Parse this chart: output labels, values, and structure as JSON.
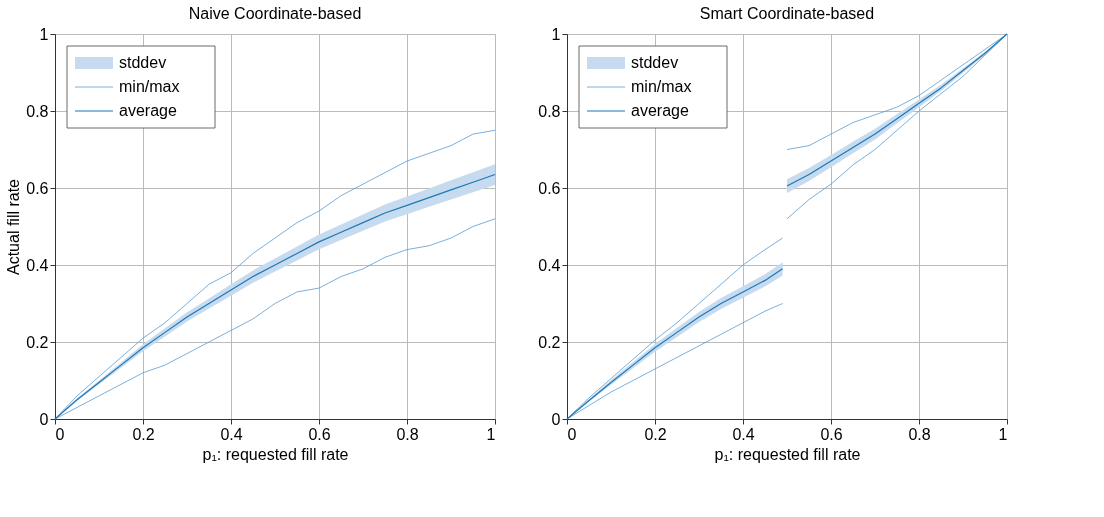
{
  "chart_data": [
    {
      "type": "line",
      "title": "Naive Coordinate-based",
      "xlabel": "p₁: requested fill rate",
      "ylabel": "Actual fill rate",
      "annotations": [
        "stddev"
      ],
      "x": [
        0,
        0.05,
        0.1,
        0.15,
        0.2,
        0.25,
        0.3,
        0.35,
        0.4,
        0.45,
        0.5,
        0.55,
        0.6,
        0.65,
        0.7,
        0.75,
        0.8,
        0.85,
        0.9,
        0.95,
        1
      ],
      "series": [
        {
          "name": "min/max",
          "color": "#5a9bd0",
          "values": [
            0,
            0.06,
            0.11,
            0.16,
            0.21,
            0.25,
            0.3,
            0.35,
            0.38,
            0.43,
            0.47,
            0.51,
            0.54,
            0.58,
            0.61,
            0.64,
            0.67,
            0.69,
            0.71,
            0.74,
            0.75
          ]
        },
        {
          "color": "#5a9bd0",
          "values": [
            0,
            0.03,
            0.06,
            0.09,
            0.12,
            0.14,
            0.17,
            0.2,
            0.23,
            0.26,
            0.3,
            0.33,
            0.34,
            0.37,
            0.39,
            0.42,
            0.44,
            0.45,
            0.47,
            0.5,
            0.52
          ]
        },
        {
          "name": "average",
          "color": "#1f77b4",
          "values": [
            0,
            0.05,
            0.095,
            0.14,
            0.185,
            0.225,
            0.265,
            0.3,
            0.335,
            0.37,
            0.4,
            0.43,
            0.46,
            0.485,
            0.51,
            0.535,
            0.555,
            0.575,
            0.595,
            0.615,
            0.635
          ],
          "lower": [
            0,
            0.047,
            0.09,
            0.133,
            0.176,
            0.214,
            0.253,
            0.287,
            0.32,
            0.354,
            0.383,
            0.412,
            0.441,
            0.465,
            0.489,
            0.513,
            0.532,
            0.551,
            0.57,
            0.589,
            0.608
          ],
          "upper": [
            0,
            0.053,
            0.1,
            0.147,
            0.194,
            0.236,
            0.277,
            0.313,
            0.35,
            0.386,
            0.417,
            0.448,
            0.479,
            0.505,
            0.531,
            0.557,
            0.578,
            0.599,
            0.62,
            0.641,
            0.662
          ]
        }
      ],
      "xlim": [
        0,
        1
      ],
      "ylim": [
        0,
        1
      ],
      "xticks": [
        0,
        0.2,
        0.4,
        0.6,
        0.8,
        1
      ],
      "yticks": [
        0,
        0.2,
        0.4,
        0.6,
        0.8,
        1
      ],
      "grid": true,
      "legend": "top left"
    },
    {
      "type": "line",
      "title": "Smart Coordinate-based",
      "xlabel": "p₁: requested fill rate",
      "annotations": [
        "stddev"
      ],
      "x": [
        0,
        0.05,
        0.1,
        0.15,
        0.2,
        0.25,
        0.3,
        0.35,
        0.4,
        0.45,
        0.49,
        0.495,
        0.5,
        0.55,
        0.6,
        0.65,
        0.7,
        0.75,
        0.8,
        0.85,
        0.9,
        0.95,
        1
      ],
      "series": [
        {
          "name": "min/max",
          "color": "#5a9bd0",
          "values": [
            0,
            0.055,
            0.105,
            0.155,
            0.205,
            0.25,
            0.3,
            0.35,
            0.4,
            0.44,
            0.47,
            null,
            0.7,
            0.71,
            0.74,
            0.77,
            0.79,
            0.81,
            0.84,
            0.88,
            0.92,
            0.96,
            1.0
          ]
        },
        {
          "color": "#5a9bd0",
          "values": [
            0,
            0.035,
            0.07,
            0.1,
            0.13,
            0.16,
            0.19,
            0.22,
            0.25,
            0.28,
            0.3,
            null,
            0.52,
            0.57,
            0.61,
            0.66,
            0.7,
            0.75,
            0.8,
            0.845,
            0.89,
            0.945,
            1.0
          ]
        },
        {
          "name": "average",
          "color": "#1f77b4",
          "values": [
            0,
            0.048,
            0.095,
            0.14,
            0.185,
            0.225,
            0.265,
            0.3,
            0.33,
            0.36,
            0.39,
            null,
            0.605,
            0.635,
            0.67,
            0.705,
            0.74,
            0.78,
            0.82,
            0.86,
            0.905,
            0.95,
            1.0
          ],
          "lower": [
            0,
            0.045,
            0.089,
            0.132,
            0.175,
            0.213,
            0.252,
            0.286,
            0.315,
            0.344,
            0.373,
            null,
            0.587,
            0.618,
            0.654,
            0.69,
            0.726,
            0.768,
            0.81,
            0.852,
            0.899,
            0.946,
            1.0
          ],
          "upper": [
            0,
            0.051,
            0.101,
            0.148,
            0.195,
            0.237,
            0.278,
            0.314,
            0.345,
            0.376,
            0.407,
            null,
            0.623,
            0.652,
            0.686,
            0.72,
            0.754,
            0.792,
            0.83,
            0.868,
            0.911,
            0.954,
            1.0
          ]
        }
      ],
      "xlim": [
        0,
        1
      ],
      "ylim": [
        0,
        1
      ],
      "xticks": [
        0,
        0.2,
        0.4,
        0.6,
        0.8,
        1
      ],
      "yticks": [
        0,
        0.2,
        0.4,
        0.6,
        0.8,
        1
      ],
      "grid": true,
      "legend": "top left"
    }
  ]
}
